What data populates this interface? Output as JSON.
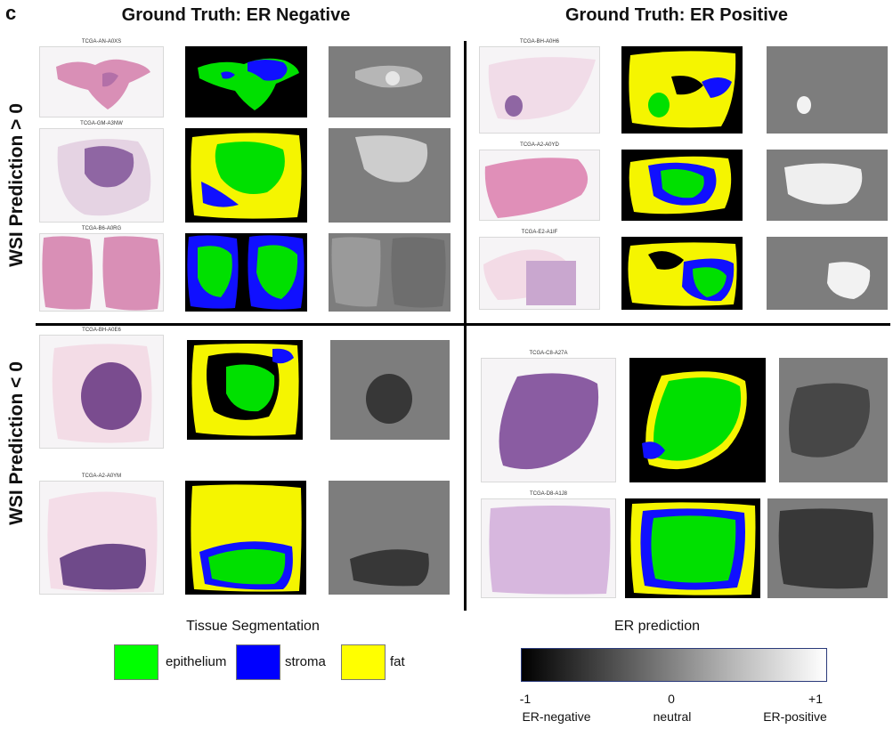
{
  "panel_letter": "c",
  "columns": [
    "Ground Truth: ER Negative",
    "Ground Truth: ER Positive"
  ],
  "rows": [
    "WSI Prediction > 0",
    "WSI Prediction < 0"
  ],
  "cases": {
    "neg_pos": [
      "TCGA-AN-A0XS",
      "TCGA-GM-A3NW",
      "TCGA-B6-A0RG"
    ],
    "pos_pos": [
      "TCGA-BH-A0H6",
      "TCGA-A2-A0YD",
      "TCGA-E2-A1IF"
    ],
    "neg_neg": [
      "TCGA-BH-A0E6",
      "TCGA-A2-A0YM"
    ],
    "pos_neg": [
      "TCGA-C8-A27A",
      "TCGA-D8-A1J8"
    ]
  },
  "legend": {
    "seg_title": "Tissue Segmentation",
    "items": [
      {
        "label": "epithelium",
        "color": "#00ff00"
      },
      {
        "label": "stroma",
        "color": "#0000ff"
      },
      {
        "label": "fat",
        "color": "#ffff00"
      }
    ],
    "er_title": "ER prediction",
    "er_ticks": [
      {
        "value": "-1",
        "desc": "ER-negative"
      },
      {
        "value": "0",
        "desc": "neutral"
      },
      {
        "value": "+1",
        "desc": "ER-positive"
      }
    ]
  },
  "colors": {
    "he_pink": "#d98fb6",
    "he_purple": "#8a4f97",
    "seg_bg": "#000000",
    "er_bg": "#7d7d7d"
  }
}
